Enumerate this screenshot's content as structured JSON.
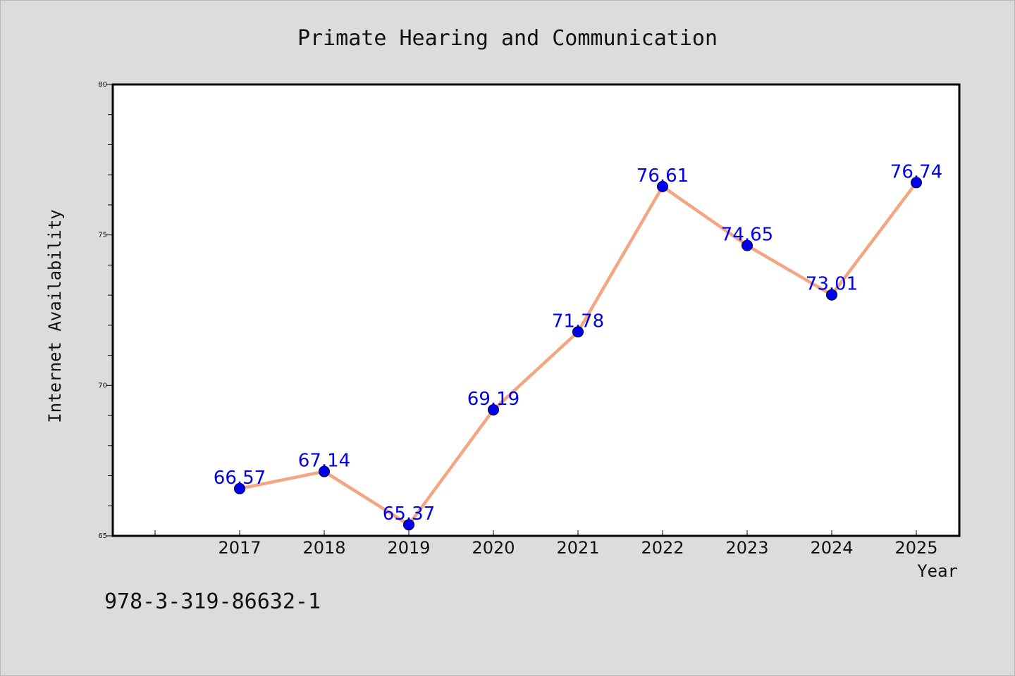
{
  "page": {
    "background": "#dcdcdc"
  },
  "chart_data": {
    "type": "line",
    "title": "Primate Hearing and Communication",
    "xlabel": "Year",
    "ylabel": "Internet Availability",
    "categories": [
      "2017",
      "2018",
      "2019",
      "2020",
      "2021",
      "2022",
      "2023",
      "2024",
      "2025"
    ],
    "series": [
      {
        "values": [
          66.57,
          67.14,
          65.37,
          69.19,
          71.78,
          76.61,
          74.65,
          73.01,
          76.74
        ],
        "labels": [
          "66.57",
          "67.14",
          "65.37",
          "69.19",
          "71.78",
          "76.61",
          "74.65",
          "73.01",
          "76.74"
        ],
        "line_color": "#f4a582",
        "marker_color": "#0000ee",
        "label_color": "#0000ee"
      }
    ],
    "ylim": [
      65,
      80
    ],
    "yticks": [
      65,
      70,
      75,
      80
    ],
    "ytick_labels": [
      "65",
      "70",
      "75",
      "80"
    ],
    "grid": false,
    "legend": "none",
    "plot_background": "#ffffff"
  },
  "footer": {
    "isbn": "978-3-319-86632-1"
  }
}
